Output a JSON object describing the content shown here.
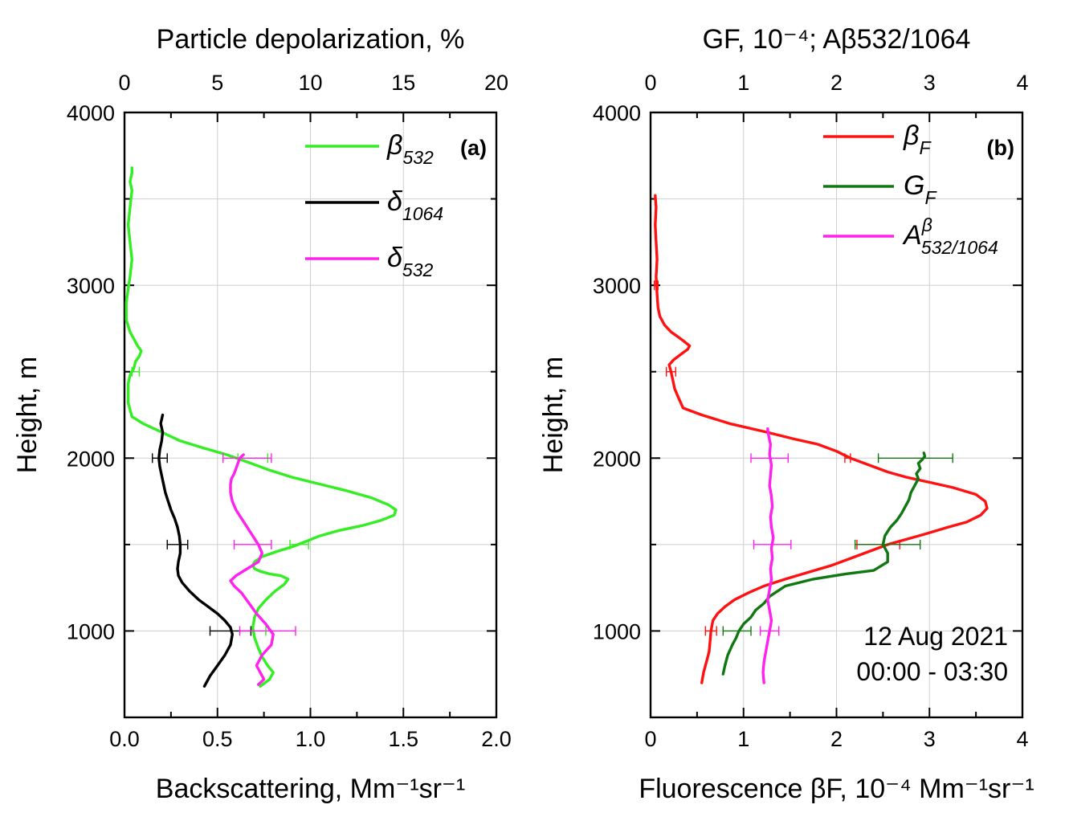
{
  "chart_data": [
    {
      "type": "line",
      "panel_label": "(a)",
      "title": "",
      "xlabel": "Backscattering, Mm⁻¹sr⁻¹",
      "x2label": "Particle depolarization, %",
      "ylabel": "Height, m",
      "xlim": [
        0,
        2
      ],
      "x2lim": [
        0,
        20
      ],
      "ylim": [
        500,
        4000
      ],
      "xticks": [
        "0.0",
        "0.5",
        "1.0",
        "1.5",
        "2.0"
      ],
      "x2ticks": [
        "0",
        "5",
        "10",
        "15",
        "20"
      ],
      "yticks": [
        "1000",
        "2000",
        "3000",
        "4000"
      ],
      "grid": true,
      "legend_position": "top-right",
      "series": [
        {
          "name": "β532",
          "legend_main": "β",
          "legend_sub": "532",
          "color": "#33ee22",
          "axis": "bottom",
          "x": [
            0.73,
            0.78,
            0.8,
            0.77,
            0.74,
            0.72,
            0.7,
            0.69,
            0.7,
            0.72,
            0.76,
            0.81,
            0.86,
            0.88,
            0.84,
            0.78,
            0.73,
            0.7,
            0.69,
            0.7,
            0.74,
            0.82,
            0.91,
            0.98,
            1.05,
            1.15,
            1.28,
            1.38,
            1.45,
            1.46,
            1.42,
            1.33,
            1.2,
            1.05,
            0.9,
            0.78,
            0.68,
            0.55,
            0.42,
            0.3,
            0.2,
            0.1,
            0.04,
            0.03,
            0.02,
            0.02,
            0.02,
            0.03,
            0.05,
            0.06,
            0.08,
            0.09,
            0.07,
            0.05,
            0.03,
            0.01,
            0.01,
            0.02,
            0.03,
            0.04,
            0.03,
            0.02,
            0.03,
            0.04,
            0.03,
            0.04,
            0.04
          ],
          "y": [
            680,
            720,
            760,
            800,
            850,
            900,
            960,
            1020,
            1080,
            1130,
            1180,
            1230,
            1270,
            1300,
            1320,
            1330,
            1345,
            1360,
            1380,
            1400,
            1430,
            1460,
            1490,
            1520,
            1550,
            1580,
            1610,
            1640,
            1670,
            1700,
            1730,
            1770,
            1810,
            1850,
            1890,
            1930,
            1970,
            2020,
            2060,
            2100,
            2150,
            2200,
            2240,
            2280,
            2320,
            2380,
            2430,
            2480,
            2520,
            2560,
            2590,
            2620,
            2650,
            2690,
            2730,
            2800,
            2900,
            2980,
            3050,
            3150,
            3250,
            3350,
            3450,
            3550,
            3600,
            3650,
            3680
          ],
          "error_bars": [
            {
              "y": 2000,
              "center": 0.69,
              "half_width": 0.08
            },
            {
              "y": 1500,
              "center": 0.94,
              "half_width": 0.05
            },
            {
              "y": 1000,
              "center": 0.72,
              "half_width": 0.04
            },
            {
              "y": 2500,
              "center": 0.06,
              "half_width": 0.02
            }
          ]
        },
        {
          "name": "δ1064",
          "legend_main": "δ",
          "legend_sub": "1064",
          "color": "#000000",
          "axis": "top",
          "x": [
            4.3,
            4.6,
            5.0,
            5.4,
            5.7,
            5.8,
            5.7,
            5.4,
            5.0,
            4.5,
            4.0,
            3.5,
            3.1,
            2.9,
            2.85,
            2.9,
            3.0,
            3.0,
            2.95,
            2.85,
            2.7,
            2.5,
            2.35,
            2.2,
            2.1,
            2.0,
            1.9,
            1.85,
            1.9,
            2.0,
            2.05,
            1.95,
            2.05
          ],
          "y": [
            680,
            740,
            800,
            860,
            920,
            980,
            1020,
            1060,
            1100,
            1140,
            1180,
            1230,
            1280,
            1320,
            1360,
            1400,
            1450,
            1500,
            1550,
            1600,
            1650,
            1700,
            1750,
            1800,
            1850,
            1900,
            1950,
            2000,
            2050,
            2100,
            2150,
            2200,
            2250
          ],
          "error_bars": [
            {
              "y": 2000,
              "center": 1.9,
              "half_width": 0.4
            },
            {
              "y": 1500,
              "center": 2.85,
              "half_width": 0.55
            },
            {
              "y": 1000,
              "center": 5.7,
              "half_width": 1.1
            }
          ]
        },
        {
          "name": "δ532",
          "legend_main": "δ",
          "legend_sub": "532",
          "color": "#ff22ee",
          "axis": "top",
          "x": [
            7.2,
            7.5,
            7.3,
            7.1,
            7.4,
            7.9,
            8.0,
            7.6,
            7.1,
            6.7,
            6.3,
            5.9,
            5.7,
            6.0,
            6.6,
            7.2,
            7.4,
            7.2,
            6.9,
            6.6,
            6.3,
            6.0,
            5.8,
            5.7,
            5.7,
            5.75,
            5.9,
            6.0,
            6.1,
            6.2,
            6.3,
            6.4
          ],
          "y": [
            690,
            720,
            760,
            800,
            860,
            920,
            980,
            1040,
            1100,
            1160,
            1220,
            1260,
            1290,
            1320,
            1360,
            1400,
            1450,
            1500,
            1550,
            1600,
            1650,
            1700,
            1750,
            1800,
            1850,
            1880,
            1910,
            1940,
            1970,
            2000,
            2010,
            2020
          ],
          "error_bars": [
            {
              "y": 2000,
              "center": 6.6,
              "half_width": 1.3
            },
            {
              "y": 1500,
              "center": 6.9,
              "half_width": 1.0
            },
            {
              "y": 1000,
              "center": 7.7,
              "half_width": 1.5
            }
          ]
        }
      ]
    },
    {
      "type": "line",
      "panel_label": "(b)",
      "title": "",
      "xlabel": "Fluorescence βF, 10⁻⁴ Mm⁻¹sr⁻¹",
      "x2label": "GF, 10⁻⁴; Aβ532/1064",
      "ylabel": "Height, m",
      "xlim": [
        0,
        4
      ],
      "x2lim": [
        0,
        4
      ],
      "ylim": [
        500,
        4000
      ],
      "xticks": [
        "0",
        "1",
        "2",
        "3",
        "4"
      ],
      "x2ticks": [
        "0",
        "1",
        "2",
        "3",
        "4"
      ],
      "yticks": [
        "1000",
        "2000",
        "3000",
        "4000"
      ],
      "grid": true,
      "legend_position": "top-right",
      "annotation": [
        "12 Aug 2021",
        "00:00 - 03:30"
      ],
      "series": [
        {
          "name": "βF",
          "legend_main": "β",
          "legend_sub": "F",
          "color": "#ff1111",
          "axis": "bottom",
          "x": [
            0.55,
            0.57,
            0.6,
            0.63,
            0.64,
            0.65,
            0.67,
            0.72,
            0.8,
            0.9,
            1.05,
            1.22,
            1.45,
            1.7,
            1.95,
            2.15,
            2.35,
            2.55,
            2.75,
            2.95,
            3.2,
            3.4,
            3.55,
            3.62,
            3.6,
            3.5,
            3.25,
            3.0,
            2.75,
            2.55,
            2.35,
            2.15,
            2.0,
            1.8,
            1.55,
            1.25,
            0.85,
            0.55,
            0.35,
            0.3,
            0.26,
            0.24,
            0.22,
            0.2,
            0.25,
            0.3,
            0.35,
            0.4,
            0.42,
            0.35,
            0.3,
            0.22,
            0.15,
            0.1,
            0.08,
            0.07,
            0.06,
            0.07,
            0.06,
            0.05,
            0.06,
            0.05
          ],
          "y": [
            700,
            760,
            820,
            880,
            940,
            1000,
            1060,
            1100,
            1140,
            1180,
            1220,
            1260,
            1300,
            1340,
            1380,
            1420,
            1460,
            1500,
            1530,
            1560,
            1600,
            1630,
            1670,
            1710,
            1750,
            1790,
            1830,
            1860,
            1890,
            1920,
            1960,
            2000,
            2040,
            2080,
            2110,
            2150,
            2200,
            2250,
            2290,
            2350,
            2400,
            2450,
            2500,
            2540,
            2570,
            2590,
            2610,
            2630,
            2650,
            2680,
            2700,
            2730,
            2770,
            2820,
            2870,
            2950,
            3050,
            3150,
            3250,
            3350,
            3450,
            3520
          ],
          "error_bars": [
            {
              "y": 2000,
              "center": 2.12,
              "half_width": 0.03
            },
            {
              "y": 1500,
              "center": 2.45,
              "half_width": 0.23
            },
            {
              "y": 1000,
              "center": 0.65,
              "half_width": 0.06
            },
            {
              "y": 2500,
              "center": 0.22,
              "half_width": 0.05
            },
            {
              "y": 3000,
              "center": 0.06,
              "half_width": 0.02
            }
          ]
        },
        {
          "name": "GF",
          "legend_main": "G",
          "legend_sub": "F",
          "color": "#117711",
          "axis": "top",
          "x": [
            0.78,
            0.8,
            0.83,
            0.88,
            0.92,
            0.95,
            1.0,
            1.08,
            1.13,
            1.22,
            1.28,
            1.45,
            1.75,
            2.1,
            2.4,
            2.55,
            2.55,
            2.5,
            2.52,
            2.58,
            2.65,
            2.7,
            2.74,
            2.78,
            2.8,
            2.84,
            2.88,
            2.86,
            2.9,
            2.88,
            2.92,
            2.95,
            2.94
          ],
          "y": [
            750,
            800,
            860,
            920,
            960,
            1000,
            1040,
            1080,
            1120,
            1160,
            1200,
            1260,
            1300,
            1330,
            1350,
            1400,
            1450,
            1500,
            1550,
            1600,
            1640,
            1680,
            1720,
            1760,
            1800,
            1840,
            1880,
            1910,
            1940,
            1970,
            1990,
            2010,
            2030
          ],
          "error_bars": [
            {
              "y": 2000,
              "center": 2.85,
              "half_width": 0.4
            },
            {
              "y": 1500,
              "center": 2.55,
              "half_width": 0.35
            },
            {
              "y": 1000,
              "center": 0.93,
              "half_width": 0.15
            }
          ]
        },
        {
          "name": "Aβ532/1064",
          "legend_main": "A",
          "legend_sup": "β",
          "legend_sub": "532/1064",
          "color": "#ff22ee",
          "axis": "top",
          "x": [
            1.22,
            1.21,
            1.22,
            1.24,
            1.26,
            1.28,
            1.3,
            1.28,
            1.26,
            1.28,
            1.3,
            1.29,
            1.31,
            1.3,
            1.32,
            1.3,
            1.29,
            1.31,
            1.3,
            1.28,
            1.29,
            1.3,
            1.28,
            1.29,
            1.27,
            1.26
          ],
          "y": [
            700,
            760,
            820,
            880,
            940,
            1000,
            1060,
            1120,
            1180,
            1240,
            1300,
            1360,
            1420,
            1480,
            1540,
            1600,
            1660,
            1720,
            1780,
            1840,
            1900,
            1960,
            2020,
            2080,
            2130,
            2170
          ],
          "error_bars": [
            {
              "y": 2000,
              "center": 1.28,
              "half_width": 0.2
            },
            {
              "y": 1500,
              "center": 1.31,
              "half_width": 0.2
            },
            {
              "y": 1000,
              "center": 1.28,
              "half_width": 0.1
            }
          ]
        }
      ]
    }
  ]
}
